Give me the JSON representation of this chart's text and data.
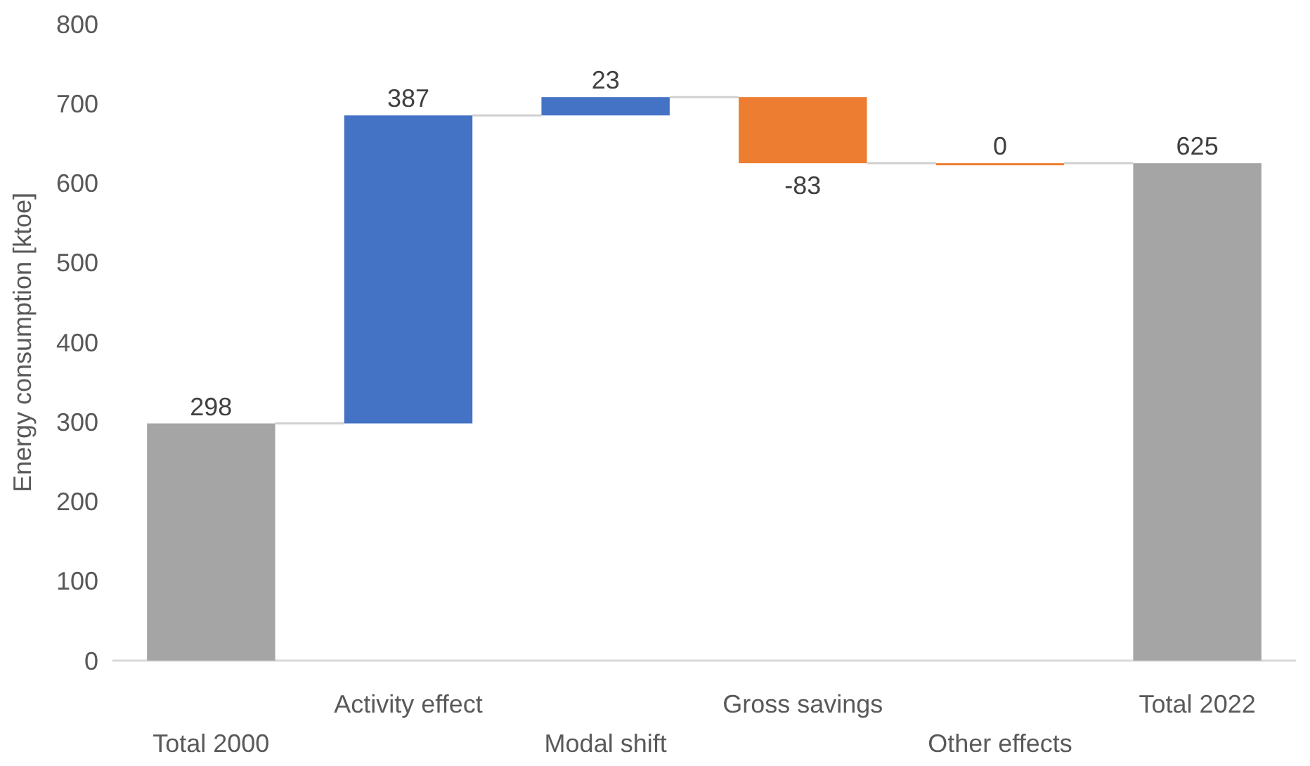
{
  "chart_data": {
    "type": "bar",
    "ylabel": "Energy consumption [ktoe]",
    "categories": [
      "Total 2000",
      "Activity effect",
      "Modal shift",
      "Gross savings",
      "Other effects",
      "Total 2022"
    ],
    "values": [
      298,
      387,
      23,
      -83,
      0,
      625
    ],
    "base": [
      0,
      298,
      685,
      708,
      625,
      0
    ],
    "colors": [
      "#a5a5a5",
      "#4472c4",
      "#4472c4",
      "#ed7d31",
      "#ed7d31",
      "#a5a5a5"
    ],
    "ylim": [
      0,
      800
    ],
    "yticks": [
      0,
      100,
      200,
      300,
      400,
      500,
      600,
      700,
      800
    ],
    "data_labels": true,
    "grid": false
  }
}
